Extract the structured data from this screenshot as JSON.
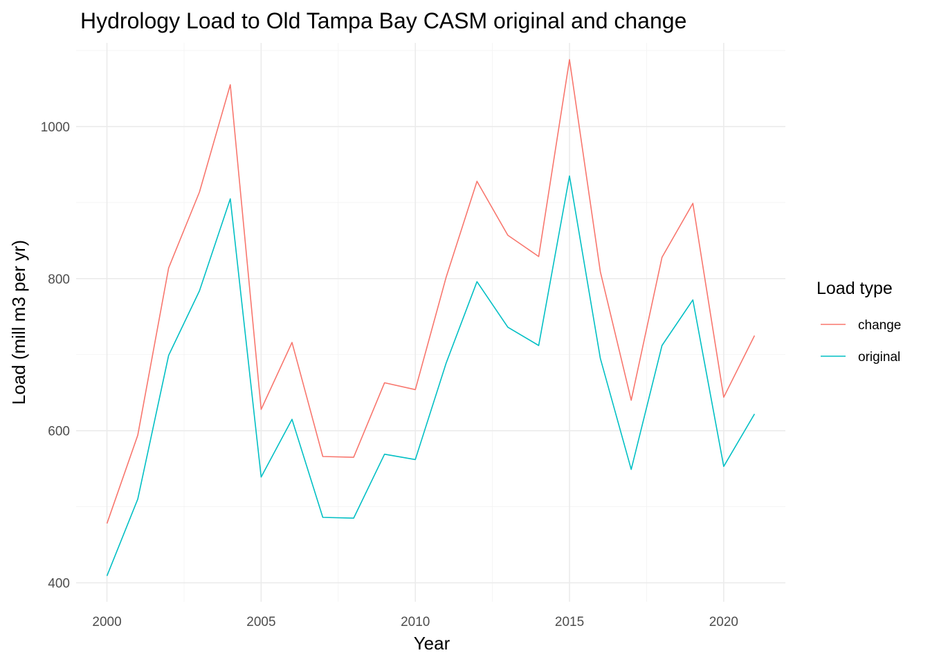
{
  "chart_data": {
    "type": "line",
    "title": "Hydrology Load to Old Tampa Bay CASM original and change",
    "xlabel": "Year",
    "ylabel": "Load (mill m3 per yr)",
    "xlim": [
      1999,
      2022
    ],
    "ylim": [
      375,
      1110
    ],
    "x_ticks": [
      2000,
      2005,
      2010,
      2015,
      2020
    ],
    "y_ticks": [
      400,
      600,
      800,
      1000
    ],
    "grid": true,
    "legend": {
      "title": "Load type",
      "position": "right"
    },
    "x": [
      2000,
      2001,
      2002,
      2003,
      2004,
      2005,
      2006,
      2007,
      2008,
      2009,
      2010,
      2011,
      2012,
      2013,
      2014,
      2015,
      2016,
      2017,
      2018,
      2019,
      2020,
      2021
    ],
    "series": [
      {
        "name": "change",
        "color": "#F8766D",
        "values": [
          478,
          594,
          814,
          914,
          1055,
          628,
          716,
          566,
          565,
          663,
          654,
          802,
          928,
          857,
          829,
          1088,
          809,
          640,
          828,
          899,
          644,
          725
        ]
      },
      {
        "name": "original",
        "color": "#00BFC4",
        "values": [
          409,
          510,
          699,
          784,
          905,
          539,
          615,
          486,
          485,
          569,
          562,
          689,
          796,
          736,
          712,
          935,
          695,
          549,
          712,
          772,
          553,
          622
        ]
      }
    ]
  }
}
